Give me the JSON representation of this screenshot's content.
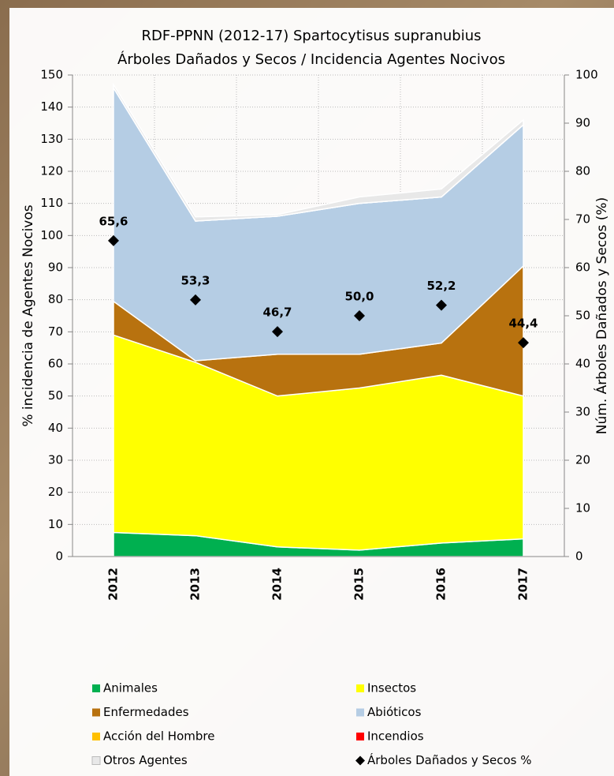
{
  "chart_data": {
    "type": "area",
    "title": "RDF-PPNN (2012-17) Spartocytisus supranubius",
    "subtitle": "Árboles Dañados y Secos / Incidencia Agentes Nocivos",
    "y_label": "% incidencia de Agentes Nocivos",
    "y2_label": "Núm. Árboles Dañados y Secos (%)",
    "categories": [
      "2012",
      "2013",
      "2014",
      "2015",
      "2016",
      "2017"
    ],
    "series": [
      {
        "name": "Animales",
        "color": "#00b050",
        "values": [
          7.5,
          6.5,
          3,
          2,
          4.2,
          5.5
        ]
      },
      {
        "name": "Insectos",
        "color": "#ffff00",
        "values": [
          61.5,
          54,
          47,
          50.5,
          52.3,
          44.5
        ]
      },
      {
        "name": "Enfermedades",
        "color": "#b8720f",
        "values": [
          10.5,
          0.5,
          13,
          10.5,
          10,
          40.5
        ]
      },
      {
        "name": "Abióticos",
        "color": "#b5cde4",
        "values": [
          66.5,
          43.5,
          43,
          47,
          45.5,
          44
        ]
      },
      {
        "name": "Acción del Hombre",
        "color": "#ffc000",
        "values": [
          0,
          0,
          0,
          0,
          0,
          0
        ]
      },
      {
        "name": "Incendios",
        "color": "#ff0000",
        "values": [
          0,
          0,
          0,
          0,
          0,
          0
        ]
      },
      {
        "name": "Otros Agentes",
        "color": "#e8e8e8",
        "values": [
          1,
          1.3,
          0.5,
          2,
          2.5,
          1.5
        ]
      },
      {
        "name": "Árboles Dañados y Secos %",
        "color": "#000000",
        "type": "scatter",
        "axis": "y2",
        "values": [
          65.6,
          53.3,
          46.7,
          50.0,
          52.2,
          44.4
        ],
        "value_labels": [
          "65,6",
          "53,3",
          "46,7",
          "50,0",
          "52,2",
          "44,4"
        ]
      }
    ],
    "ylim": [
      0,
      150
    ],
    "yticks": [
      0,
      10,
      20,
      30,
      40,
      50,
      60,
      70,
      80,
      90,
      100,
      110,
      120,
      130,
      140,
      150
    ],
    "y2lim": [
      0,
      100
    ],
    "y2ticks": [
      0,
      10,
      20,
      30,
      40,
      50,
      60,
      70,
      80,
      90,
      100
    ],
    "grid": true
  }
}
